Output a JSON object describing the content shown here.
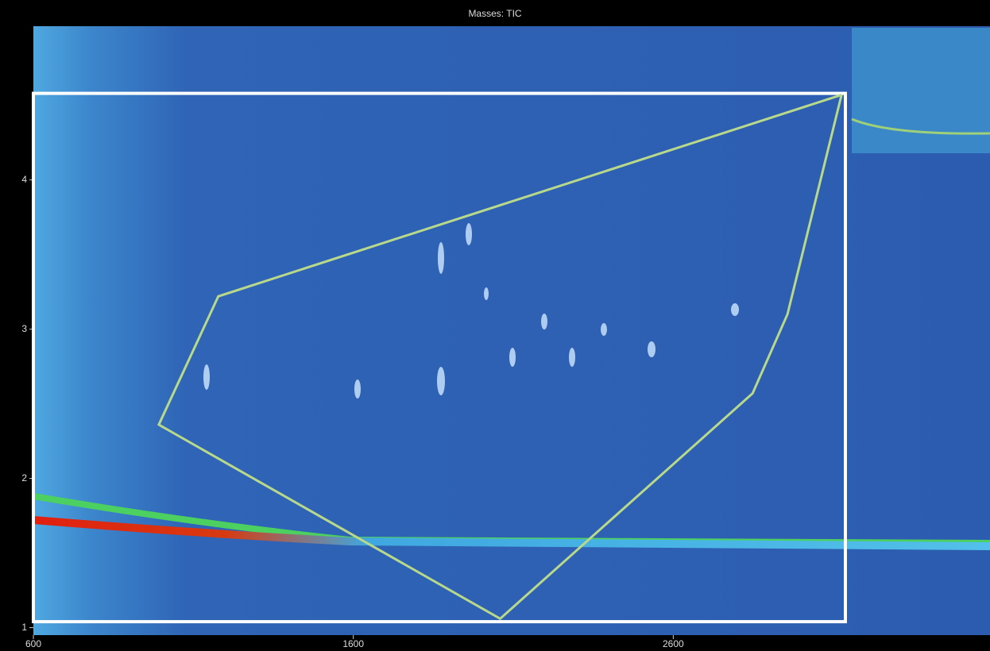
{
  "chart_data": {
    "type": "heatmap",
    "title": "Masses: TIC",
    "xlim": [
      600,
      3590
    ],
    "xticks": [
      600,
      1600,
      2600
    ],
    "ylim": [
      0.95,
      5.03
    ],
    "yticks": [
      1,
      2,
      3,
      4
    ],
    "selection": {
      "color": "#ffffff",
      "x": [
        600,
        3138
      ],
      "y": [
        1.04,
        4.58
      ]
    },
    "region": {
      "color": "#b8d88a",
      "x": [
        3126,
        1178,
        992,
        2059,
        2848,
        2957,
        3126
      ],
      "y": [
        4.57,
        3.22,
        2.36,
        1.06,
        2.57,
        3.1,
        4.57
      ]
    }
  }
}
